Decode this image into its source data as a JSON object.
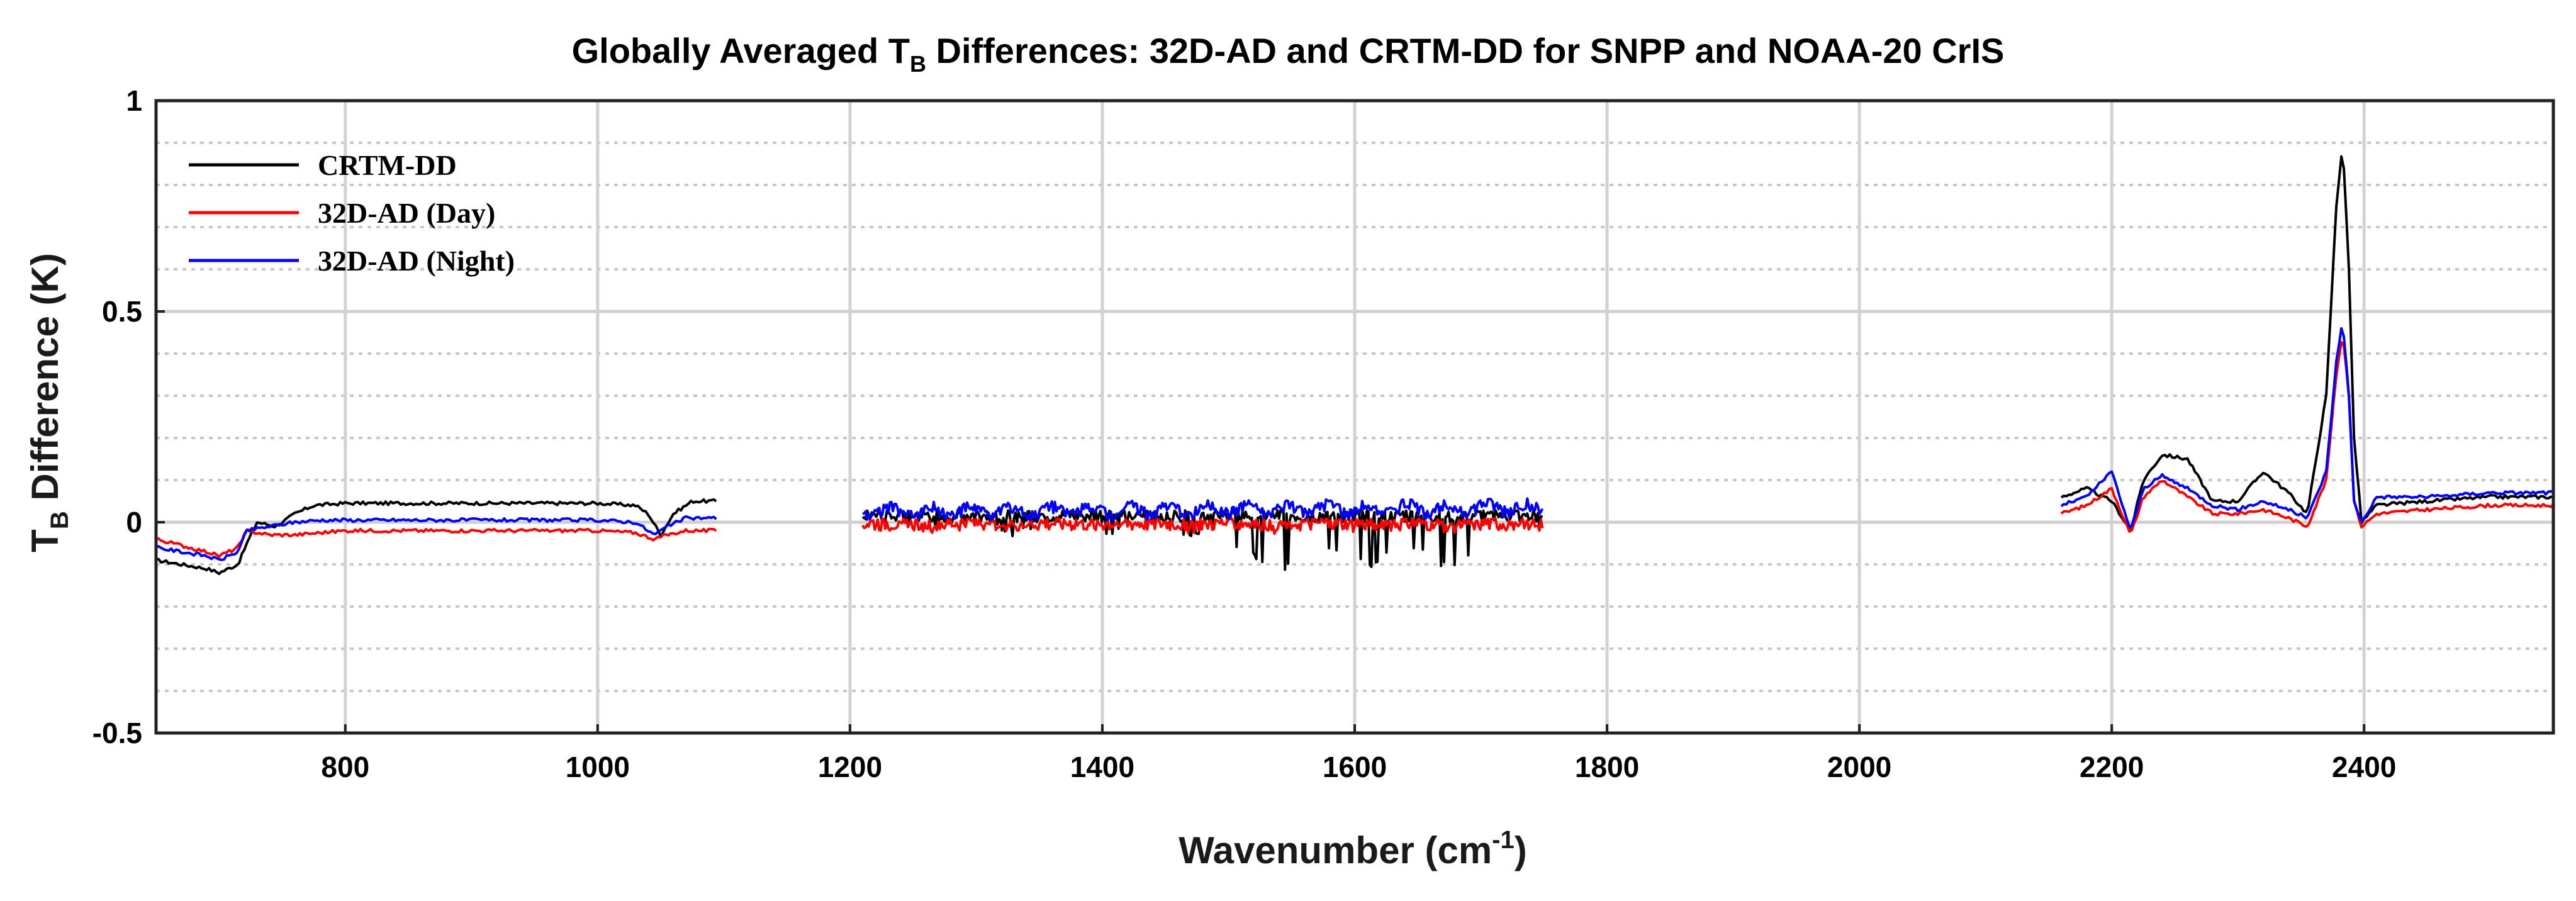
{
  "chart_data": {
    "type": "line",
    "title": {
      "prefix": "Globally Averaged T",
      "sub": "B",
      "suffix": " Differences: 32D-AD and CRTM-DD for SNPP and NOAA-20 CrIS"
    },
    "xlabel": {
      "text": "Wavenumber (cm",
      "sup": "-1",
      "close": ")"
    },
    "ylabel": {
      "prefix": "T",
      "sub": "B",
      "suffix": " Difference (K)"
    },
    "xlim": [
      650,
      2550
    ],
    "ylim": [
      -0.5,
      1.0
    ],
    "xticks": [
      800,
      1000,
      1200,
      1400,
      1600,
      1800,
      2000,
      2200,
      2400
    ],
    "xtick_labels": [
      "800",
      "1000",
      "1200",
      "1400",
      "1600",
      "1800",
      "2000",
      "2200",
      "2400"
    ],
    "yticks": [
      -0.5,
      0,
      0.5,
      1
    ],
    "ytick_labels": [
      "-0.5",
      "0",
      "0.5",
      "1"
    ],
    "grid_major_y": [
      0,
      0.5
    ],
    "grid_minor_y": [
      -0.4,
      -0.3,
      -0.2,
      -0.1,
      0.1,
      0.2,
      0.3,
      0.4,
      0.6,
      0.7,
      0.8,
      0.9
    ],
    "legend_position": "top-left",
    "series": [
      {
        "name": "CRTM-DD",
        "color": "#000000",
        "segments": [
          {
            "x": [
              650,
              670,
              690,
              700,
              715,
              722,
              730,
              745,
              760,
              775,
              800,
              900,
              1000,
              1030,
              1040,
              1050,
              1060,
              1075,
              1095
            ],
            "y": [
              -0.09,
              -0.1,
              -0.11,
              -0.12,
              -0.1,
              -0.05,
              0.0,
              -0.01,
              0.02,
              0.04,
              0.045,
              0.045,
              0.045,
              0.04,
              0.02,
              -0.03,
              0.02,
              0.05,
              0.05
            ]
          },
          {
            "x": [
              1210,
              1750
            ],
            "y": [
              0.02,
              0.02
            ],
            "noise": "dense_black"
          },
          {
            "x": [
              2160,
              2180,
              2200,
              2215,
              2225,
              2240,
              2260,
              2280,
              2300,
              2320,
              2340,
              2355,
              2370,
              2378,
              2383,
              2388,
              2392,
              2398,
              2410,
              2450,
              2500,
              2550
            ],
            "y": [
              0.06,
              0.08,
              0.05,
              -0.02,
              0.1,
              0.16,
              0.15,
              0.05,
              0.05,
              0.12,
              0.07,
              0.02,
              0.3,
              0.75,
              0.9,
              0.6,
              0.2,
              0.0,
              0.04,
              0.05,
              0.06,
              0.06
            ]
          }
        ]
      },
      {
        "name": "32D-AD (Day)",
        "color": "#ff0000",
        "segments": [
          {
            "x": [
              650,
              690,
              700,
              715,
              722,
              740,
              760,
              780,
              800,
              900,
              1000,
              1030,
              1045,
              1055,
              1070,
              1095
            ],
            "y": [
              -0.04,
              -0.07,
              -0.08,
              -0.06,
              -0.02,
              -0.03,
              -0.03,
              -0.025,
              -0.02,
              -0.02,
              -0.02,
              -0.025,
              -0.04,
              -0.03,
              -0.02,
              -0.02
            ]
          },
          {
            "x": [
              1210,
              1750
            ],
            "y": [
              0.0,
              0.0
            ],
            "noise": "dense_red"
          },
          {
            "x": [
              2160,
              2180,
              2200,
              2215,
              2225,
              2240,
              2260,
              2280,
              2300,
              2320,
              2340,
              2355,
              2370,
              2378,
              2383,
              2388,
              2392,
              2398,
              2410,
              2450,
              2500,
              2550
            ],
            "y": [
              0.02,
              0.04,
              0.08,
              -0.03,
              0.06,
              0.1,
              0.06,
              0.02,
              0.02,
              0.03,
              0.01,
              -0.01,
              0.1,
              0.35,
              0.45,
              0.3,
              0.05,
              -0.01,
              0.02,
              0.03,
              0.04,
              0.04
            ]
          }
        ]
      },
      {
        "name": "32D-AD (Night)",
        "color": "#0000ff",
        "segments": [
          {
            "x": [
              650,
              690,
              700,
              715,
              722,
              740,
              760,
              780,
              800,
              900,
              1000,
              1030,
              1045,
              1055,
              1070,
              1095
            ],
            "y": [
              -0.06,
              -0.08,
              -0.09,
              -0.07,
              -0.02,
              -0.01,
              0.0,
              0.005,
              0.005,
              0.005,
              0.005,
              0.0,
              -0.03,
              -0.01,
              0.01,
              0.01
            ]
          },
          {
            "x": [
              1210,
              1750
            ],
            "y": [
              0.03,
              0.04
            ],
            "noise": "dense_blue"
          },
          {
            "x": [
              2160,
              2180,
              2200,
              2215,
              2225,
              2240,
              2260,
              2280,
              2300,
              2320,
              2340,
              2355,
              2370,
              2378,
              2383,
              2388,
              2392,
              2398,
              2410,
              2450,
              2500,
              2550
            ],
            "y": [
              0.04,
              0.06,
              0.12,
              -0.02,
              0.08,
              0.11,
              0.08,
              0.04,
              0.03,
              0.05,
              0.03,
              0.01,
              0.12,
              0.38,
              0.48,
              0.3,
              0.05,
              0.0,
              0.06,
              0.06,
              0.07,
              0.07
            ]
          }
        ]
      }
    ]
  }
}
